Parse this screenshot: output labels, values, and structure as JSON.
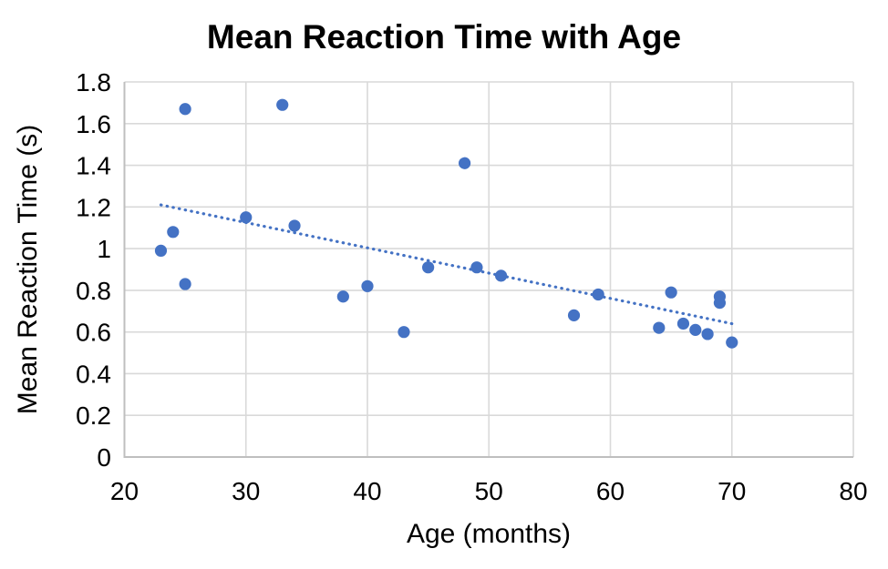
{
  "chart_data": {
    "type": "scatter",
    "title": "Mean Reaction Time with Age",
    "xlabel": "Age (months)",
    "ylabel": "Mean Reaction Time (s)",
    "xlim": [
      20,
      80
    ],
    "ylim": [
      0,
      1.8
    ],
    "xticks": [
      20,
      30,
      40,
      50,
      60,
      70,
      80
    ],
    "yticks": [
      0,
      0.2,
      0.4,
      0.6,
      0.8,
      1,
      1.2,
      1.4,
      1.6,
      1.8
    ],
    "grid": true,
    "legend_position": "none",
    "series": [
      {
        "name": "mean-reaction-time",
        "points": [
          {
            "x": 23,
            "y": 0.99
          },
          {
            "x": 24,
            "y": 1.08
          },
          {
            "x": 25,
            "y": 0.83
          },
          {
            "x": 25,
            "y": 1.67
          },
          {
            "x": 30,
            "y": 1.15
          },
          {
            "x": 33,
            "y": 1.69
          },
          {
            "x": 34,
            "y": 1.11
          },
          {
            "x": 38,
            "y": 0.77
          },
          {
            "x": 40,
            "y": 0.82
          },
          {
            "x": 43,
            "y": 0.6
          },
          {
            "x": 45,
            "y": 0.91
          },
          {
            "x": 48,
            "y": 1.41
          },
          {
            "x": 49,
            "y": 0.91
          },
          {
            "x": 51,
            "y": 0.87
          },
          {
            "x": 57,
            "y": 0.68
          },
          {
            "x": 59,
            "y": 0.78
          },
          {
            "x": 64,
            "y": 0.62
          },
          {
            "x": 65,
            "y": 0.79
          },
          {
            "x": 66,
            "y": 0.64
          },
          {
            "x": 67,
            "y": 0.61
          },
          {
            "x": 68,
            "y": 0.59
          },
          {
            "x": 69,
            "y": 0.74
          },
          {
            "x": 69,
            "y": 0.77
          },
          {
            "x": 70,
            "y": 0.55
          }
        ]
      }
    ],
    "trendline": {
      "style": "dotted",
      "x1": 23,
      "y1": 1.21,
      "x2": 70,
      "y2": 0.64
    },
    "colors": {
      "marker": "#4472C4",
      "trendline": "#4472C4",
      "gridline": "#D9D9D9",
      "axis_line": "#BFBFBF",
      "text": "#000000",
      "background": "#FFFFFF"
    }
  }
}
